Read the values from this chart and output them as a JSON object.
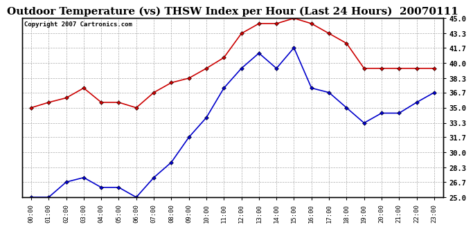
{
  "title": "Outdoor Temperature (vs) THSW Index per Hour (Last 24 Hours)  20070111",
  "copyright": "Copyright 2007 Cartronics.com",
  "hours": [
    "00:00",
    "01:00",
    "02:00",
    "03:00",
    "04:00",
    "05:00",
    "06:00",
    "07:00",
    "08:00",
    "09:00",
    "10:00",
    "11:00",
    "12:00",
    "13:00",
    "14:00",
    "15:00",
    "16:00",
    "17:00",
    "18:00",
    "19:00",
    "20:00",
    "21:00",
    "22:00",
    "23:00"
  ],
  "red_data": [
    35.0,
    35.6,
    36.1,
    37.2,
    35.6,
    35.6,
    35.0,
    36.7,
    37.8,
    38.3,
    39.4,
    40.6,
    43.3,
    44.4,
    44.4,
    45.0,
    44.4,
    43.3,
    42.2,
    39.4,
    39.4,
    39.4,
    39.4,
    39.4
  ],
  "blue_data": [
    25.0,
    25.0,
    26.7,
    27.2,
    26.1,
    26.1,
    25.0,
    27.2,
    28.9,
    31.7,
    33.9,
    37.2,
    39.4,
    41.1,
    39.4,
    41.7,
    37.2,
    36.7,
    35.0,
    33.3,
    34.4,
    34.4,
    35.6,
    36.7
  ],
  "red_color": "#cc0000",
  "blue_color": "#0000cc",
  "bg_color": "#ffffff",
  "grid_color": "#aaaaaa",
  "ylim": [
    25.0,
    45.0
  ],
  "yticks": [
    25.0,
    26.7,
    28.3,
    30.0,
    31.7,
    33.3,
    35.0,
    36.7,
    38.3,
    40.0,
    41.7,
    43.3,
    45.0
  ],
  "ytick_labels": [
    "25.0",
    "26.7",
    "28.3",
    "30.0",
    "31.7",
    "33.3",
    "35.0",
    "36.7",
    "38.3",
    "40.0",
    "41.7",
    "43.3",
    "45.0"
  ],
  "title_fontsize": 11,
  "copyright_fontsize": 6.5,
  "marker": "D",
  "marker_size": 3,
  "linewidth": 1.2
}
